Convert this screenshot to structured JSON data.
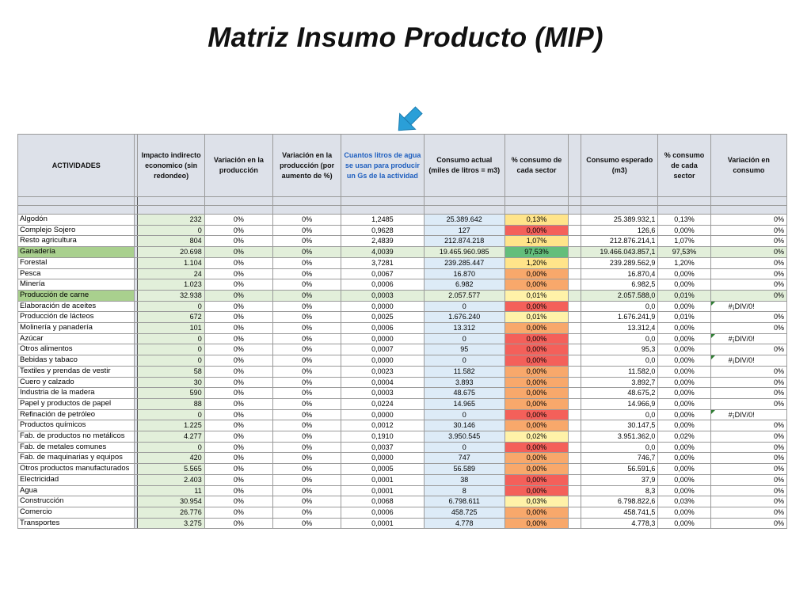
{
  "title": "Matriz Insumo Producto (MIP)",
  "headers": {
    "actividades": "ACTIVIDADES",
    "impacto": "Impacto indirecto economico (sin redondeo)",
    "variacion_prod": "Variación en la producción",
    "variacion_pct": "Variación en la producción (por aumento de %)",
    "litros": "Cuantos litros de agua se usan para producir un Gs de la actividad",
    "consumo_actual": "Consumo actual (miles de litros = m3)",
    "pct_consumo": "% consumo de cada sector",
    "consumo_esperado": "Consumo esperado (m3)",
    "pct_consumo2": "% consumo de cada sector",
    "variacion_consumo": "Variación en consumo"
  },
  "rows": [
    {
      "act": "Algodón",
      "imp": "232",
      "vp": "0%",
      "vpp": "0%",
      "lit": "1,2485",
      "ca": "25.389.642",
      "pc": "0,13%",
      "pcColor": "yel",
      "ce": "25.389.932,1",
      "pc2": "0,13%",
      "vc": "0%"
    },
    {
      "act": "Complejo Sojero",
      "imp": "0",
      "vp": "0%",
      "vpp": "0%",
      "lit": "0,9628",
      "ca": "127",
      "pc": "0,00%",
      "pcColor": "red",
      "ce": "126,6",
      "pc2": "0,00%",
      "vc": "0%"
    },
    {
      "act": "Resto agricultura",
      "imp": "804",
      "vp": "0%",
      "vpp": "0%",
      "lit": "2,4839",
      "ca": "212.874.218",
      "pc": "1,07%",
      "pcColor": "yel",
      "ce": "212.876.214,1",
      "pc2": "1,07%",
      "vc": "0%"
    },
    {
      "act": "Ganadería",
      "imp": "20.698",
      "vp": "0%",
      "vpp": "0%",
      "lit": "4,0039",
      "ca": "19.465.960.985",
      "pc": "97,53%",
      "pcColor": "grn",
      "ce": "19.466.043.857,1",
      "pc2": "97,53%",
      "vc": "0%",
      "hi": true
    },
    {
      "act": "Forestal",
      "imp": "1.104",
      "vp": "0%",
      "vpp": "0%",
      "lit": "3,7281",
      "ca": "239.285.447",
      "pc": "1,20%",
      "pcColor": "yel",
      "ce": "239.289.562,9",
      "pc2": "1,20%",
      "vc": "0%"
    },
    {
      "act": "Pesca",
      "imp": "24",
      "vp": "0%",
      "vpp": "0%",
      "lit": "0,0067",
      "ca": "16.870",
      "pc": "0,00%",
      "pcColor": "org",
      "ce": "16.870,4",
      "pc2": "0,00%",
      "vc": "0%"
    },
    {
      "act": "Minería",
      "imp": "1.023",
      "vp": "0%",
      "vpp": "0%",
      "lit": "0,0006",
      "ca": "6.982",
      "pc": "0,00%",
      "pcColor": "org",
      "ce": "6.982,5",
      "pc2": "0,00%",
      "vc": "0%"
    },
    {
      "act": "Producción de carne",
      "imp": "32.938",
      "vp": "0%",
      "vpp": "0%",
      "lit": "0,0003",
      "ca": "2.057.577",
      "pc": "0,01%",
      "pcColor": "lyl",
      "ce": "2.057.588,0",
      "pc2": "0,01%",
      "vc": "0%",
      "hi": true
    },
    {
      "act": "Elaboración de aceites",
      "imp": "0",
      "vp": "0%",
      "vpp": "0%",
      "lit": "0,0000",
      "ca": "0",
      "pc": "0,00%",
      "pcColor": "red",
      "ce": "0,0",
      "pc2": "0,00%",
      "vc": "#¡DIV/0!",
      "div": true
    },
    {
      "act": "Producción de lácteos",
      "imp": "672",
      "vp": "0%",
      "vpp": "0%",
      "lit": "0,0025",
      "ca": "1.676.240",
      "pc": "0,01%",
      "pcColor": "lyl",
      "ce": "1.676.241,9",
      "pc2": "0,01%",
      "vc": "0%"
    },
    {
      "act": "Molinería y panadería",
      "imp": "101",
      "vp": "0%",
      "vpp": "0%",
      "lit": "0,0006",
      "ca": "13.312",
      "pc": "0,00%",
      "pcColor": "org",
      "ce": "13.312,4",
      "pc2": "0,00%",
      "vc": "0%"
    },
    {
      "act": "Azúcar",
      "imp": "0",
      "vp": "0%",
      "vpp": "0%",
      "lit": "0,0000",
      "ca": "0",
      "pc": "0,00%",
      "pcColor": "red",
      "ce": "0,0",
      "pc2": "0,00%",
      "vc": "#¡DIV/0!",
      "div": true
    },
    {
      "act": "Otros alimentos",
      "imp": "0",
      "vp": "0%",
      "vpp": "0%",
      "lit": "0,0007",
      "ca": "95",
      "pc": "0,00%",
      "pcColor": "red",
      "ce": "95,3",
      "pc2": "0,00%",
      "vc": "0%"
    },
    {
      "act": "Bebidas y tabaco",
      "imp": "0",
      "vp": "0%",
      "vpp": "0%",
      "lit": "0,0000",
      "ca": "0",
      "pc": "0,00%",
      "pcColor": "red",
      "ce": "0,0",
      "pc2": "0,00%",
      "vc": "#¡DIV/0!",
      "div": true
    },
    {
      "act": "Textiles y prendas de vestir",
      "imp": "58",
      "vp": "0%",
      "vpp": "0%",
      "lit": "0,0023",
      "ca": "11.582",
      "pc": "0,00%",
      "pcColor": "org",
      "ce": "11.582,0",
      "pc2": "0,00%",
      "vc": "0%"
    },
    {
      "act": "Cuero y calzado",
      "imp": "30",
      "vp": "0%",
      "vpp": "0%",
      "lit": "0,0004",
      "ca": "3.893",
      "pc": "0,00%",
      "pcColor": "org",
      "ce": "3.892,7",
      "pc2": "0,00%",
      "vc": "0%"
    },
    {
      "act": "Industria de la madera",
      "imp": "590",
      "vp": "0%",
      "vpp": "0%",
      "lit": "0,0003",
      "ca": "48.675",
      "pc": "0,00%",
      "pcColor": "org",
      "ce": "48.675,2",
      "pc2": "0,00%",
      "vc": "0%"
    },
    {
      "act": "Papel y productos de papel",
      "imp": "88",
      "vp": "0%",
      "vpp": "0%",
      "lit": "0,0224",
      "ca": "14.965",
      "pc": "0,00%",
      "pcColor": "org",
      "ce": "14.966,9",
      "pc2": "0,00%",
      "vc": "0%"
    },
    {
      "act": "Refinación de petróleo",
      "imp": "0",
      "vp": "0%",
      "vpp": "0%",
      "lit": "0,0000",
      "ca": "0",
      "pc": "0,00%",
      "pcColor": "red",
      "ce": "0,0",
      "pc2": "0,00%",
      "vc": "#¡DIV/0!",
      "div": true
    },
    {
      "act": "Productos químicos",
      "imp": "1.225",
      "vp": "0%",
      "vpp": "0%",
      "lit": "0,0012",
      "ca": "30.146",
      "pc": "0,00%",
      "pcColor": "org",
      "ce": "30.147,5",
      "pc2": "0,00%",
      "vc": "0%"
    },
    {
      "act": "Fab. de productos no metálicos",
      "imp": "4.277",
      "vp": "0%",
      "vpp": "0%",
      "lit": "0,1910",
      "ca": "3.950.545",
      "pc": "0,02%",
      "pcColor": "lyl",
      "ce": "3.951.362,0",
      "pc2": "0,02%",
      "vc": "0%"
    },
    {
      "act": "Fab. de metales comunes",
      "imp": "0",
      "vp": "0%",
      "vpp": "0%",
      "lit": "0,0037",
      "ca": "0",
      "pc": "0,00%",
      "pcColor": "red",
      "ce": "0,0",
      "pc2": "0,00%",
      "vc": "0%"
    },
    {
      "act": "Fab. de maquinarias y equipos",
      "imp": "420",
      "vp": "0%",
      "vpp": "0%",
      "lit": "0,0000",
      "ca": "747",
      "pc": "0,00%",
      "pcColor": "org",
      "ce": "746,7",
      "pc2": "0,00%",
      "vc": "0%"
    },
    {
      "act": "Otros productos manufacturados",
      "imp": "5.565",
      "vp": "0%",
      "vpp": "0%",
      "lit": "0,0005",
      "ca": "56.589",
      "pc": "0,00%",
      "pcColor": "org",
      "ce": "56.591,6",
      "pc2": "0,00%",
      "vc": "0%"
    },
    {
      "act": "Electricidad",
      "imp": "2.403",
      "vp": "0%",
      "vpp": "0%",
      "lit": "0,0001",
      "ca": "38",
      "pc": "0,00%",
      "pcColor": "red",
      "ce": "37,9",
      "pc2": "0,00%",
      "vc": "0%"
    },
    {
      "act": "Agua",
      "imp": "11",
      "vp": "0%",
      "vpp": "0%",
      "lit": "0,0001",
      "ca": "8",
      "pc": "0,00%",
      "pcColor": "red",
      "ce": "8,3",
      "pc2": "0,00%",
      "vc": "0%"
    },
    {
      "act": "Construcción",
      "imp": "30.954",
      "vp": "0%",
      "vpp": "0%",
      "lit": "0,0068",
      "ca": "6.798.611",
      "pc": "0,03%",
      "pcColor": "lyl",
      "ce": "6.798.822,6",
      "pc2": "0,03%",
      "vc": "0%"
    },
    {
      "act": "Comercio",
      "imp": "26.776",
      "vp": "0%",
      "vpp": "0%",
      "lit": "0,0006",
      "ca": "458.725",
      "pc": "0,00%",
      "pcColor": "org",
      "ce": "458.741,5",
      "pc2": "0,00%",
      "vc": "0%"
    },
    {
      "act": "Transportes",
      "imp": "3.275",
      "vp": "0%",
      "vpp": "0%",
      "lit": "0,0001",
      "ca": "4.778",
      "pc": "0,00%",
      "pcColor": "org",
      "ce": "4.778,3",
      "pc2": "0,00%",
      "vc": "0%"
    }
  ]
}
